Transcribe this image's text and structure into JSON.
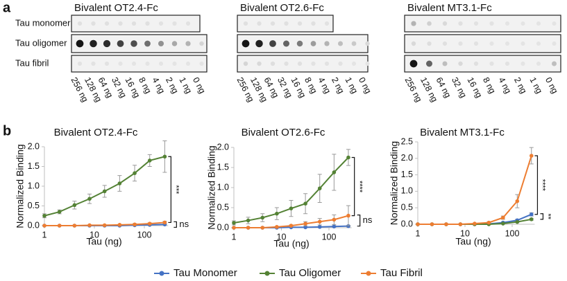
{
  "blot": {
    "panel_label": "a",
    "groups": [
      {
        "title": "Bivalent OT2.4-Fc"
      },
      {
        "title": "Bivalent OT2.6-Fc"
      },
      {
        "title": "Bivalent MT3.1-Fc"
      }
    ],
    "rows": [
      "Tau monomer",
      "Tau oligomer",
      "Tau fibril"
    ],
    "amounts": [
      "256 ng",
      "128 ng",
      "64 ng",
      "32 ng",
      "16 ng",
      "8 ng",
      "4 ng",
      "2 ng",
      "1 ng",
      "0 ng"
    ]
  },
  "panel_b_label": "b",
  "chart_data": [
    {
      "type": "line",
      "title": "Bivalent OT2.4-Fc",
      "xlabel": "Tau (ng)",
      "ylabel": "Normalized Binding",
      "x": [
        1,
        2,
        4,
        8,
        16,
        32,
        64,
        128,
        256
      ],
      "xscale": "log",
      "xlim": [
        1,
        300
      ],
      "xticks": [
        1,
        10,
        100
      ],
      "ylim": [
        0,
        2
      ],
      "yticks": [
        {
          "value": 0,
          "label": "0.0"
        },
        {
          "value": 0.5,
          "label": "0.5"
        },
        {
          "value": 1,
          "label": "1.0"
        },
        {
          "value": 1.5,
          "label": "1.5"
        },
        {
          "value": 2,
          "label": "2.0"
        }
      ],
      "series": [
        {
          "name": "Tau Monomer",
          "color": "#4472c4",
          "values": [
            0,
            0,
            0,
            0,
            0,
            0,
            0.01,
            0.02,
            0.03
          ],
          "errors": [
            0,
            0,
            0,
            0,
            0,
            0,
            0.01,
            0.01,
            0.01
          ]
        },
        {
          "name": "Tau Oligomer",
          "color": "#548235",
          "values": [
            0.25,
            0.35,
            0.52,
            0.68,
            0.87,
            1.07,
            1.33,
            1.65,
            1.75
          ],
          "errors": [
            0.05,
            0.05,
            0.1,
            0.12,
            0.15,
            0.2,
            0.2,
            0.15,
            0.4
          ]
        },
        {
          "name": "Tau Fibril",
          "color": "#ed7d31",
          "values": [
            0,
            0,
            0,
            0.01,
            0.01,
            0.02,
            0.03,
            0.05,
            0.08
          ],
          "errors": [
            0,
            0,
            0,
            0.01,
            0.01,
            0.01,
            0.02,
            0.02,
            0.03
          ]
        }
      ],
      "annotations": [
        "***",
        "ns"
      ]
    },
    {
      "type": "line",
      "title": "Bivalent OT2.6-Fc",
      "xlabel": "Tau (ng)",
      "ylabel": "Normalized Binding",
      "x": [
        1,
        2,
        4,
        8,
        16,
        32,
        64,
        128,
        256
      ],
      "xscale": "log",
      "xlim": [
        1,
        300
      ],
      "xticks": [
        1,
        10,
        100
      ],
      "ylim": [
        0,
        2
      ],
      "yticks": [
        {
          "value": 0,
          "label": "0.0"
        },
        {
          "value": 0.5,
          "label": "0.5"
        },
        {
          "value": 1,
          "label": "1.0"
        },
        {
          "value": 1.5,
          "label": "1.5"
        },
        {
          "value": 2,
          "label": "2.0"
        }
      ],
      "series": [
        {
          "name": "Tau Monomer",
          "color": "#4472c4",
          "values": [
            0,
            0,
            0,
            0,
            0.01,
            0.01,
            0.02,
            0.03,
            0.04
          ],
          "errors": [
            0,
            0,
            0,
            0,
            0.01,
            0.01,
            0.01,
            0.02,
            0.02
          ]
        },
        {
          "name": "Tau Oligomer",
          "color": "#548235",
          "values": [
            0.12,
            0.18,
            0.25,
            0.35,
            0.48,
            0.6,
            0.98,
            1.38,
            1.75
          ],
          "errors": [
            0.05,
            0.08,
            0.1,
            0.15,
            0.2,
            0.25,
            0.35,
            0.45,
            0.2
          ]
        },
        {
          "name": "Tau Fibril",
          "color": "#ed7d31",
          "values": [
            0,
            0,
            0,
            0.02,
            0.05,
            0.1,
            0.15,
            0.2,
            0.3
          ],
          "errors": [
            0,
            0,
            0,
            0.01,
            0.02,
            0.05,
            0.08,
            0.12,
            0.25
          ]
        }
      ],
      "annotations": [
        "****",
        "ns"
      ]
    },
    {
      "type": "line",
      "title": "Bivalent MT3.1-Fc",
      "xlabel": "Tau (ng)",
      "ylabel": "Normalized Binding",
      "x": [
        1,
        2,
        4,
        8,
        16,
        32,
        64,
        128,
        256
      ],
      "xscale": "log",
      "xlim": [
        1,
        300
      ],
      "xticks": [
        1,
        10,
        100
      ],
      "ylim": [
        0,
        2.5
      ],
      "yticks": [
        {
          "value": 0,
          "label": "0.0"
        },
        {
          "value": 0.5,
          "label": "0.5"
        },
        {
          "value": 1,
          "label": "1.0"
        },
        {
          "value": 1.5,
          "label": "1.5"
        },
        {
          "value": 2,
          "label": "2.0"
        },
        {
          "value": 2.5,
          "label": "2.5"
        }
      ],
      "series": [
        {
          "name": "Tau Monomer",
          "color": "#4472c4",
          "values": [
            0,
            0,
            0,
            0,
            0,
            0.01,
            0.05,
            0.12,
            0.3
          ],
          "errors": [
            0,
            0,
            0,
            0,
            0,
            0.01,
            0.02,
            0.03,
            0.05
          ]
        },
        {
          "name": "Tau Oligomer",
          "color": "#548235",
          "values": [
            0,
            0,
            0,
            0,
            0,
            0,
            0.02,
            0.07,
            0.15
          ],
          "errors": [
            0,
            0,
            0,
            0,
            0,
            0,
            0.01,
            0.02,
            0.03
          ]
        },
        {
          "name": "Tau Fibril",
          "color": "#ed7d31",
          "values": [
            0,
            0,
            0,
            0,
            0.02,
            0.05,
            0.2,
            0.7,
            2.08
          ],
          "errors": [
            0,
            0,
            0,
            0,
            0.01,
            0.02,
            0.05,
            0.2,
            0.25
          ]
        }
      ],
      "annotations": [
        "****",
        "**"
      ]
    }
  ]
}
